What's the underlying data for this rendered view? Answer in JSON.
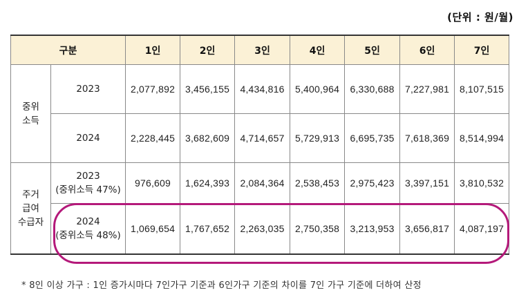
{
  "unit_label": "(단위 : 원/월)",
  "table": {
    "header": [
      "구분",
      "1인",
      "2인",
      "3인",
      "4인",
      "5인",
      "6인",
      "7인"
    ],
    "groups": [
      {
        "label_lines": [
          "중위",
          "소득"
        ],
        "rows": [
          {
            "year": "2023",
            "note": "",
            "values": [
              "2,077,892",
              "3,456,155",
              "4,434,816",
              "5,400,964",
              "6,330,688",
              "7,227,981",
              "8,107,515"
            ]
          },
          {
            "year": "2024",
            "note": "",
            "values": [
              "2,228,445",
              "3,682,609",
              "4,714,657",
              "5,729,913",
              "6,695,735",
              "7,618,369",
              "8,514,994"
            ]
          }
        ]
      },
      {
        "label_lines": [
          "주거",
          "급여",
          "수급자"
        ],
        "rows": [
          {
            "year": "2023",
            "note": "(중위소득 47%)",
            "values": [
              "976,609",
              "1,624,393",
              "2,084,364",
              "2,538,453",
              "2,975,423",
              "3,397,151",
              "3,810,532"
            ]
          },
          {
            "year": "2024",
            "note": "(중위소득 48%)",
            "values": [
              "1,069,654",
              "1,767,652",
              "2,263,035",
              "2,750,358",
              "3,213,953",
              "3,656,817",
              "4,087,197"
            ]
          }
        ]
      }
    ]
  },
  "highlight_color": "#b4197a",
  "header_bg": "#fbf1d6",
  "footnote": "* 8인 이상 가구 : 1인 증가시마다 7인가구 기준과 6인가구 기준의 차이를 7인 가구 기준에 더하여 산정"
}
